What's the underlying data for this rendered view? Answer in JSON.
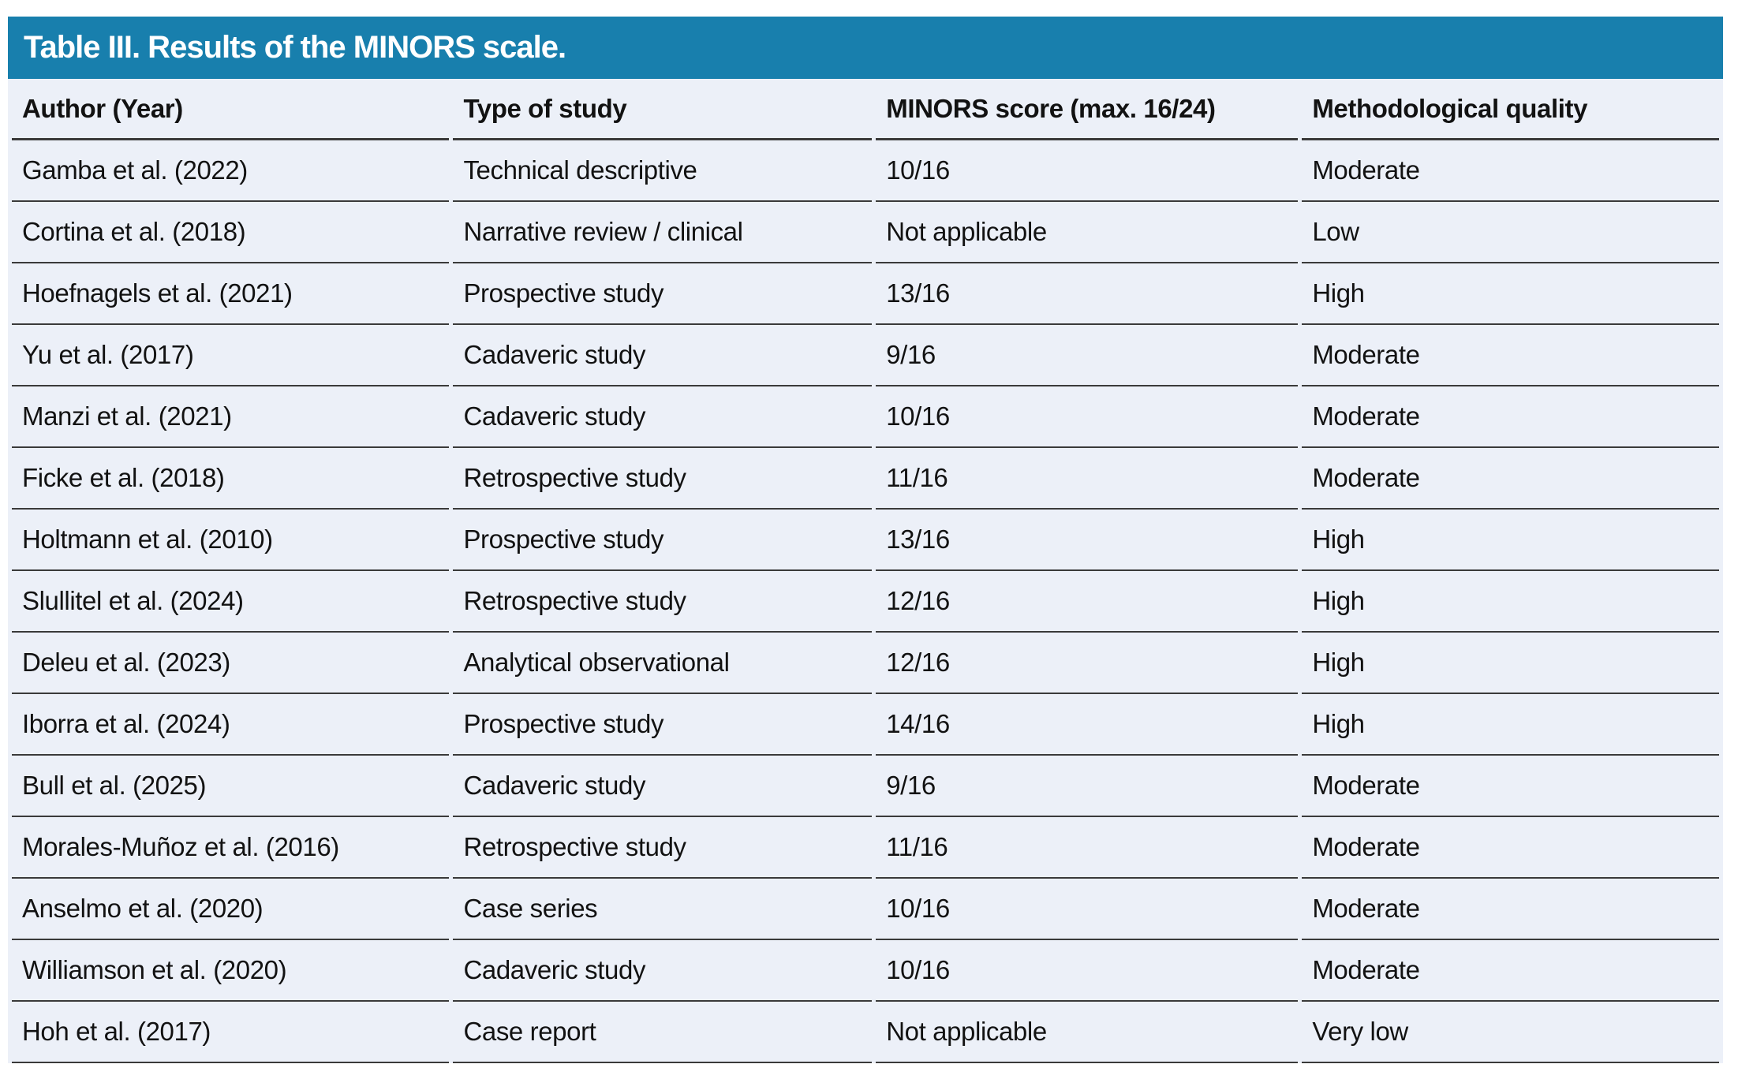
{
  "title": "Table III. Results of the MINORS scale.",
  "columns": [
    "Author (Year)",
    "Type of study",
    "MINORS score (max. 16/24)",
    "Methodological quality"
  ],
  "rows": [
    {
      "author": "Gamba et al. (2022)",
      "type": "Technical descriptive",
      "score": "10/16",
      "quality": "Moderate"
    },
    {
      "author": "Cortina et al. (2018)",
      "type": "Narrative review / clinical",
      "score": "Not applicable",
      "quality": "Low"
    },
    {
      "author": "Hoefnagels et al. (2021)",
      "type": "Prospective study",
      "score": "13/16",
      "quality": "High"
    },
    {
      "author": "Yu et al. (2017)",
      "type": "Cadaveric study",
      "score": "9/16",
      "quality": "Moderate"
    },
    {
      "author": "Manzi et al. (2021)",
      "type": "Cadaveric study",
      "score": "10/16",
      "quality": "Moderate"
    },
    {
      "author": "Ficke et al. (2018)",
      "type": "Retrospective study",
      "score": "11/16",
      "quality": "Moderate"
    },
    {
      "author": "Holtmann et al. (2010)",
      "type": "Prospective study",
      "score": "13/16",
      "quality": "High"
    },
    {
      "author": "Slullitel et al. (2024)",
      "type": "Retrospective study",
      "score": "12/16",
      "quality": "High"
    },
    {
      "author": "Deleu et al. (2023)",
      "type": "Analytical observational",
      "score": "12/16",
      "quality": "High"
    },
    {
      "author": "Iborra et al. (2024)",
      "type": "Prospective study",
      "score": "14/16",
      "quality": "High"
    },
    {
      "author": "Bull et al. (2025)",
      "type": "Cadaveric study",
      "score": "9/16",
      "quality": "Moderate"
    },
    {
      "author": "Morales-Muñoz et al. (2016)",
      "type": "Retrospective study",
      "score": "11/16",
      "quality": "Moderate"
    },
    {
      "author": "Anselmo et al. (2020)",
      "type": "Case series",
      "score": "10/16",
      "quality": "Moderate"
    },
    {
      "author": "Williamson et al. (2020)",
      "type": "Cadaveric study",
      "score": "10/16",
      "quality": "Moderate"
    },
    {
      "author": "Hoh et al. (2017)",
      "type": "Case report",
      "score": "Not applicable",
      "quality": "Very low"
    }
  ],
  "colors": {
    "accent": "#187FAD",
    "row_background": "#ECF0F8",
    "divider": "#3A3A3A",
    "title_text": "#FFFFFF",
    "body_text": "#121212"
  }
}
